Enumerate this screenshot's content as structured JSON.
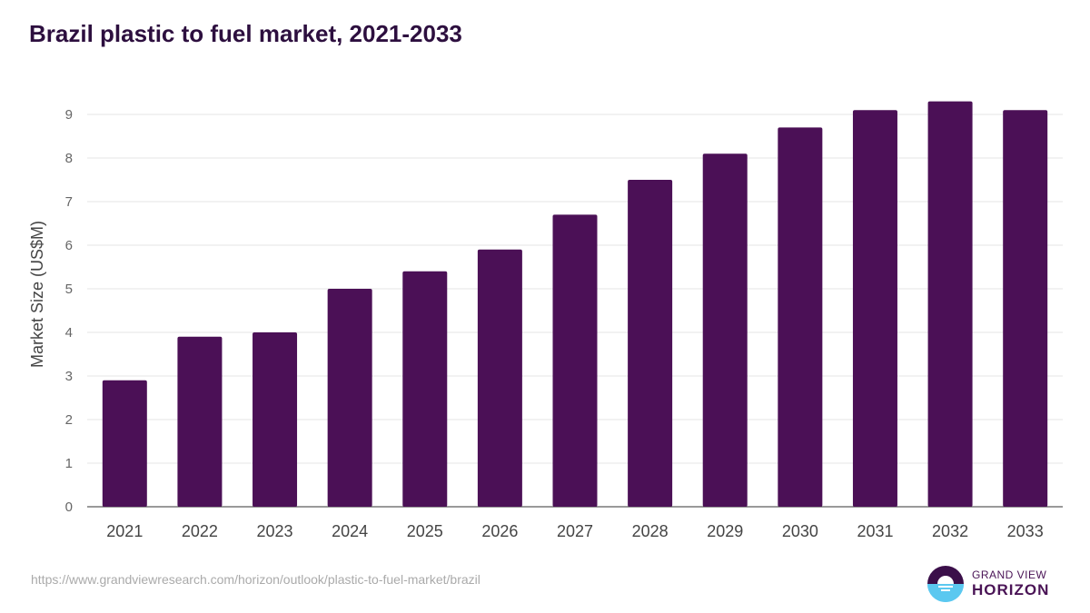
{
  "title": "Brazil plastic to fuel market, 2021-2033",
  "source": "https://www.grandviewresearch.com/horizon/outlook/plastic-to-fuel-market/brazil",
  "logo": {
    "line1": "GRAND VIEW",
    "line2": "HORIZON"
  },
  "colors": {
    "bar": "#4b1056",
    "grid": "#e6e6e6",
    "logo_top": "#3b0f4a",
    "logo_bottom": "#5bc8f0"
  },
  "chart_data": {
    "type": "bar",
    "title": "Brazil plastic to fuel market, 2021-2033",
    "xlabel": "",
    "ylabel": "Market Size (US$M)",
    "categories": [
      "2021",
      "2022",
      "2023",
      "2024",
      "2025",
      "2026",
      "2027",
      "2028",
      "2029",
      "2030",
      "2031",
      "2032",
      "2033"
    ],
    "values": [
      2.9,
      3.9,
      4.0,
      5.0,
      5.4,
      5.9,
      6.7,
      7.5,
      8.1,
      8.7,
      9.1,
      9.3,
      9.1
    ],
    "yticks": [
      0,
      1,
      2,
      3,
      4,
      5,
      6,
      7,
      8,
      9
    ],
    "ylim": [
      0,
      9
    ],
    "grid": true,
    "legend": "none"
  }
}
